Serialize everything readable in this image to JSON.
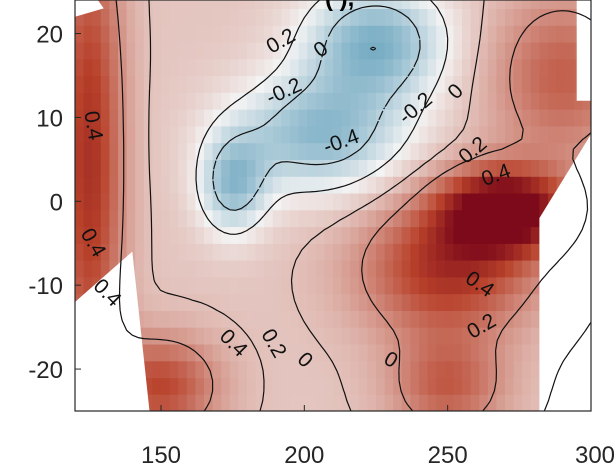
{
  "chart_data": {
    "type": "heatmap",
    "title": "(",
    "title_fragment": "(   ),",
    "xlabel": "",
    "ylabel": "",
    "xlim": [
      120,
      300
    ],
    "ylim": [
      -25,
      24
    ],
    "x_ticks": [
      150,
      200,
      250,
      300
    ],
    "y_ticks": [
      -20,
      -10,
      0,
      10,
      20
    ],
    "grid": false,
    "colormap": {
      "negative": "#4a93b3",
      "zero": "#f3f3f3",
      "positive": "#b8412a",
      "extreme": "#7d0a1a"
    },
    "field_range": [
      -0.55,
      0.95
    ],
    "anomaly_centers": [
      {
        "x": 225,
        "y": 19,
        "value": -0.55,
        "sx": 25,
        "sy": 7
      },
      {
        "x": 205,
        "y": 8,
        "value": -0.5,
        "sx": 30,
        "sy": 7
      },
      {
        "x": 175,
        "y": 2,
        "value": -0.45,
        "sx": 12,
        "sy": 6
      },
      {
        "x": 270,
        "y": -1,
        "value": 0.95,
        "sx": 22,
        "sy": 5
      },
      {
        "x": 250,
        "y": -8,
        "value": 0.6,
        "sx": 30,
        "sy": 8
      },
      {
        "x": 125,
        "y": 5,
        "value": 0.6,
        "sx": 12,
        "sy": 30
      },
      {
        "x": 290,
        "y": 15,
        "value": 0.4,
        "sx": 25,
        "sy": 10
      },
      {
        "x": 150,
        "y": -22,
        "value": 0.5,
        "sx": 20,
        "sy": 6
      },
      {
        "x": 250,
        "y": -22,
        "value": 0.4,
        "sx": 20,
        "sy": 6
      }
    ],
    "contour_labels": [
      {
        "text": "0.2",
        "x": 192,
        "y": 19,
        "angle": -30
      },
      {
        "text": "0",
        "x": 206,
        "y": 18,
        "angle": -35
      },
      {
        "text": "-0.2",
        "x": 193,
        "y": 13,
        "angle": -25
      },
      {
        "text": "-0.4",
        "x": 213,
        "y": 7,
        "angle": -20
      },
      {
        "text": "-0.2",
        "x": 239,
        "y": 11,
        "angle": -40
      },
      {
        "text": "0",
        "x": 253,
        "y": 13,
        "angle": -45
      },
      {
        "text": "0.2",
        "x": 259,
        "y": 6,
        "angle": -40
      },
      {
        "text": "0.4",
        "x": 267,
        "y": 3,
        "angle": -20
      },
      {
        "text": "0.4",
        "x": 126,
        "y": 9,
        "angle": 80
      },
      {
        "text": "0.4",
        "x": 126,
        "y": -5,
        "angle": 60
      },
      {
        "text": "0.4",
        "x": 131,
        "y": -11,
        "angle": 45
      },
      {
        "text": "0.4",
        "x": 261,
        "y": -10,
        "angle": 35
      },
      {
        "text": "0.2",
        "x": 262,
        "y": -15,
        "angle": -30
      },
      {
        "text": "0.4",
        "x": 175,
        "y": -17,
        "angle": 45
      },
      {
        "text": "0.2",
        "x": 189,
        "y": -17,
        "angle": 60
      },
      {
        "text": "0",
        "x": 200,
        "y": -19,
        "angle": 45
      },
      {
        "text": "0",
        "x": 230,
        "y": -19,
        "angle": 30
      }
    ],
    "mask_polygons": [
      [
        [
          120,
          -25
        ],
        [
          120,
          -12
        ],
        [
          140,
          -6
        ],
        [
          146,
          -25
        ]
      ],
      [
        [
          120,
          24
        ],
        [
          120,
          22
        ],
        [
          130,
          23
        ],
        [
          128,
          24
        ]
      ],
      [
        [
          282,
          -25
        ],
        [
          282,
          -2
        ],
        [
          300,
          8
        ],
        [
          300,
          -25
        ]
      ],
      [
        [
          295,
          24
        ],
        [
          295,
          12
        ],
        [
          300,
          12
        ],
        [
          300,
          24
        ]
      ]
    ]
  }
}
